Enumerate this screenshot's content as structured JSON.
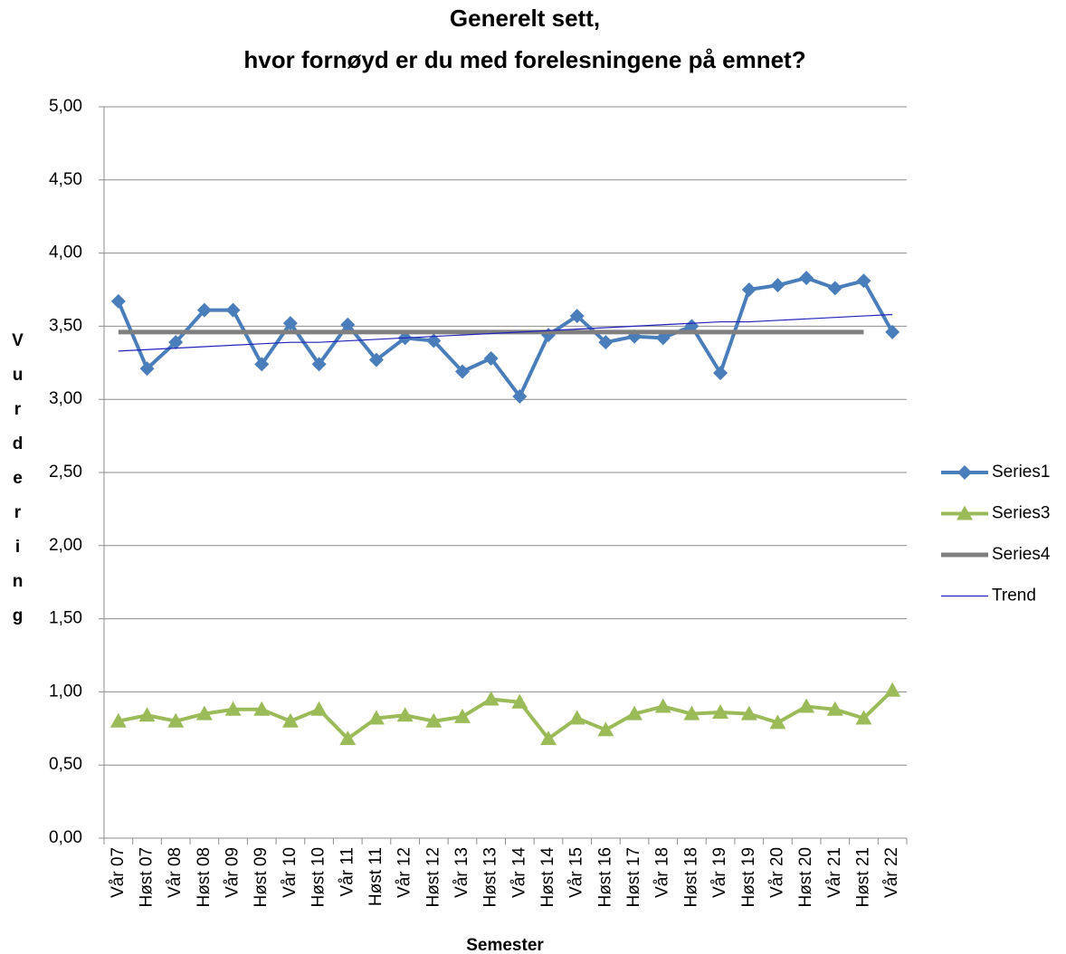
{
  "chart_data": {
    "type": "line",
    "title": [
      "Generelt sett,",
      "hvor fornøyd er du med forelesningene på emnet?"
    ],
    "x_label": "Semester",
    "y_label": "Vurdering",
    "categories": [
      "Vår 07",
      "Høst 07",
      "Vår 08",
      "Høst 08",
      "Vår 09",
      "Høst 09",
      "Vår 10",
      "Høst 10",
      "Vår 11",
      "Høst 11",
      "Vår 12",
      "Høst 12",
      "Vår 13",
      "Høst 13",
      "Vår 14",
      "Høst 14",
      "Vår 15",
      "Høst 16",
      "Høst 17",
      "Vår 18",
      "Høst 18",
      "Vår 19",
      "Høst 19",
      "Vår 20",
      "Høst 20",
      "Vår 21",
      "Høst 21",
      "Vår 22"
    ],
    "series": [
      {
        "name": "Series1",
        "color": "#4a7ebb",
        "marker": "diamond",
        "width": 4,
        "values": [
          3.67,
          3.21,
          3.39,
          3.61,
          3.61,
          3.24,
          3.52,
          3.24,
          3.51,
          3.27,
          3.42,
          3.4,
          3.19,
          3.28,
          3.02,
          3.44,
          3.57,
          3.39,
          3.43,
          3.42,
          3.5,
          3.18,
          3.75,
          3.78,
          3.83,
          3.76,
          3.81,
          3.46
        ]
      },
      {
        "name": "Series3",
        "color": "#9bbb59",
        "marker": "triangle",
        "width": 4,
        "values": [
          0.8,
          0.84,
          0.8,
          0.85,
          0.88,
          0.88,
          0.8,
          0.88,
          0.68,
          0.82,
          0.84,
          0.8,
          0.83,
          0.95,
          0.93,
          0.68,
          0.82,
          0.74,
          0.85,
          0.9,
          0.85,
          0.86,
          0.85,
          0.79,
          0.9,
          0.88,
          0.82,
          1.01
        ]
      },
      {
        "name": "Series4",
        "color": "#7f7f7f",
        "marker": "none",
        "width": 5,
        "values": [
          3.46,
          3.46,
          3.46,
          3.46,
          3.46,
          3.46,
          3.46,
          3.46,
          3.46,
          3.46,
          3.46,
          3.46,
          3.46,
          3.46,
          3.46,
          3.46,
          3.46,
          3.46,
          3.46,
          3.46,
          3.46,
          3.46,
          3.46,
          3.46,
          3.46,
          3.46,
          3.46,
          null
        ]
      },
      {
        "name": "Trend",
        "color": "#2222bb",
        "marker": "none",
        "width": 1.2,
        "values": [
          3.33,
          3.34,
          3.35,
          3.36,
          3.37,
          3.38,
          3.39,
          3.39,
          3.4,
          3.41,
          3.42,
          3.43,
          3.44,
          3.45,
          3.46,
          3.47,
          3.48,
          3.49,
          3.5,
          3.51,
          3.52,
          3.53,
          3.53,
          3.54,
          3.55,
          3.56,
          3.57,
          3.58
        ]
      }
    ],
    "ylim": [
      0,
      5
    ],
    "yticks": [
      {
        "value": 0,
        "label": "0,00"
      },
      {
        "value": 0.5,
        "label": "0,50"
      },
      {
        "value": 1,
        "label": "1,00"
      },
      {
        "value": 1.5,
        "label": "1,50"
      },
      {
        "value": 2,
        "label": "2,00"
      },
      {
        "value": 2.5,
        "label": "2,50"
      },
      {
        "value": 3,
        "label": "3,00"
      },
      {
        "value": 3.5,
        "label": "3,50"
      },
      {
        "value": 4,
        "label": "4,00"
      },
      {
        "value": 4.5,
        "label": "4,50"
      },
      {
        "value": 5,
        "label": "5,00"
      }
    ],
    "grid": true,
    "legend": "right"
  }
}
